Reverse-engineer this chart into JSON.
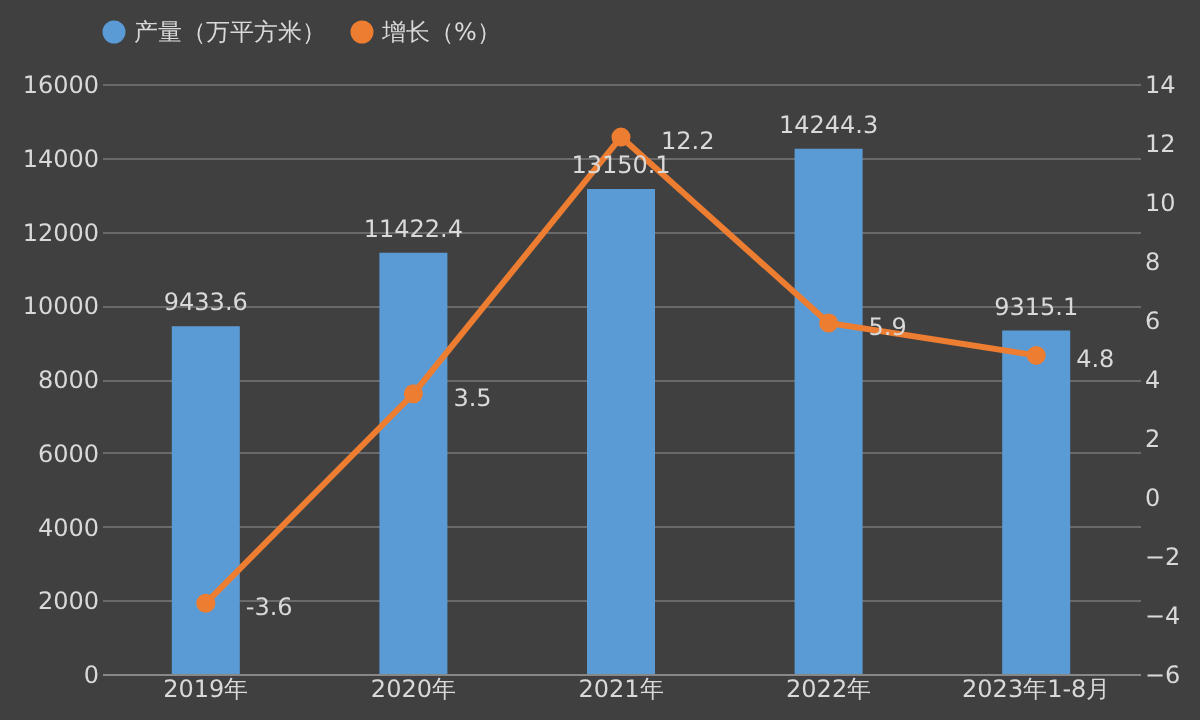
{
  "chart_data": {
    "type": "bar",
    "categories": [
      "2019年",
      "2020年",
      "2021年",
      "2022年",
      "2023年1-8月"
    ],
    "series": [
      {
        "name": "产量（万平方米）",
        "color": "#5b9bd5",
        "values": [
          9433.6,
          11422.4,
          13150.1,
          14244.3,
          9315.1
        ]
      },
      {
        "name": "增长（%）",
        "type": "line",
        "axis": "y2",
        "color": "#ed7d31",
        "values": [
          -3.6,
          3.5,
          12.2,
          5.9,
          4.8
        ]
      }
    ],
    "ylim": [
      0,
      16000
    ],
    "yticks": [
      0,
      2000,
      4000,
      6000,
      8000,
      10000,
      12000,
      14000,
      16000
    ],
    "y2lim": [
      -6,
      14
    ],
    "y2ticks": [
      -6,
      -4,
      -2,
      0,
      2,
      4,
      6,
      8,
      10,
      12,
      14
    ],
    "grid": "y",
    "legend": "top",
    "marker": "circle",
    "line_style": "solid",
    "data_labels": true
  }
}
